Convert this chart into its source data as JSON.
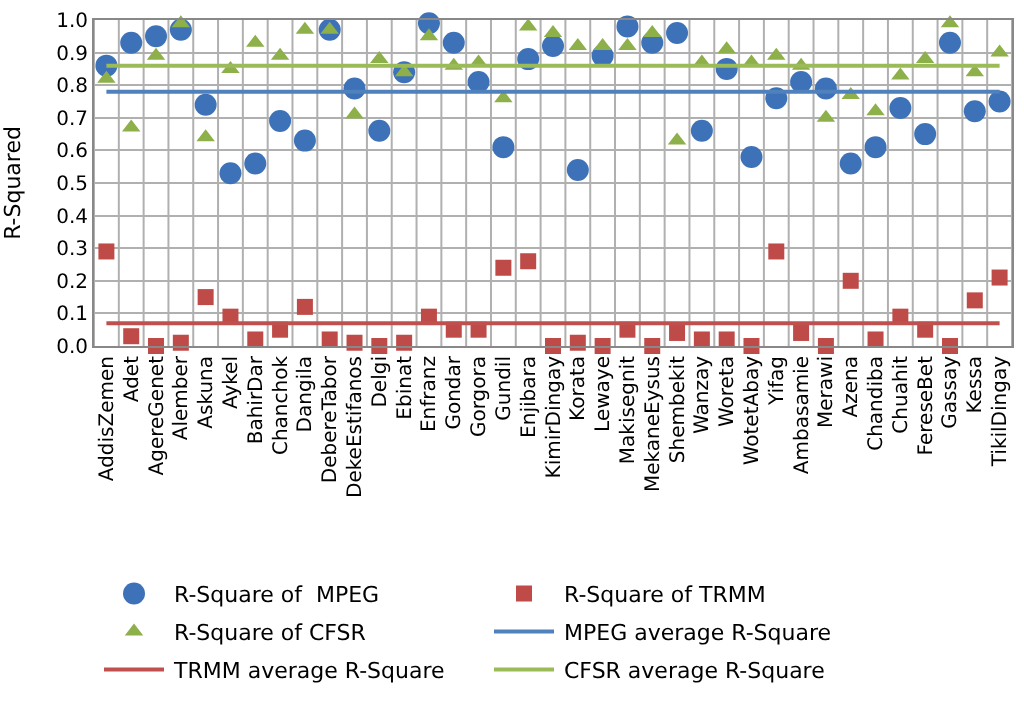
{
  "chart_data": {
    "type": "scatter",
    "ylabel": "R-Squared",
    "categories": [
      "AddisZemen",
      "Adet",
      "AgereGenet",
      "Alember",
      "Askuna",
      "Aykel",
      "BahirDar",
      "Chanchok",
      "Dangila",
      "DebereTabor",
      "DekeEstifanos",
      "Delgi",
      "Ebinat",
      "Enfranz",
      "Gondar",
      "Gorgora",
      "Gundil",
      "Enjibara",
      "KimirDingay",
      "Korata",
      "Lewaye",
      "Makisegnit",
      "MekaneEysus",
      "Shembekit",
      "Wanzay",
      "Woreta",
      "WotetAbay",
      "Yifag",
      "Ambasamie",
      "Merawi",
      "Azena",
      "Chandiba",
      "Chuahit",
      "FereseBet",
      "Gassay",
      "Kessa",
      "TikilDingay"
    ],
    "series": [
      {
        "name": "R-Square of  MPEG",
        "color": "#3d72b8",
        "marker": "circle",
        "values": [
          0.86,
          0.93,
          0.95,
          0.97,
          0.74,
          0.53,
          0.56,
          0.69,
          0.63,
          0.97,
          0.79,
          0.66,
          0.84,
          0.99,
          0.93,
          0.81,
          0.61,
          0.88,
          0.92,
          0.54,
          0.89,
          0.98,
          0.93,
          0.96,
          0.66,
          0.85,
          0.58,
          0.76,
          0.81,
          0.79,
          0.56,
          0.61,
          0.73,
          0.65,
          0.93,
          0.72,
          0.75
        ]
      },
      {
        "name": "R-Square of TRMM",
        "color": "#be4b48",
        "marker": "square",
        "values": [
          0.29,
          0.03,
          0.0,
          0.01,
          0.15,
          0.09,
          0.02,
          0.05,
          0.12,
          0.02,
          0.01,
          0.0,
          0.01,
          0.09,
          0.05,
          0.05,
          0.24,
          0.26,
          0.0,
          0.01,
          0.0,
          0.05,
          0.0,
          0.04,
          0.02,
          0.02,
          0.0,
          0.29,
          0.04,
          0.0,
          0.2,
          0.02,
          0.09,
          0.05,
          0.0,
          0.14,
          0.21
        ]
      },
      {
        "name": "R-Square of CFSR",
        "color": "#8eb04a",
        "marker": "triangle",
        "values": [
          0.82,
          0.67,
          0.89,
          0.99,
          0.64,
          0.85,
          0.93,
          0.89,
          0.97,
          0.97,
          0.71,
          0.88,
          0.84,
          0.95,
          0.86,
          0.87,
          0.76,
          0.98,
          0.96,
          0.92,
          0.92,
          0.92,
          0.96,
          0.63,
          0.87,
          0.91,
          0.87,
          0.89,
          0.86,
          0.7,
          0.77,
          0.72,
          0.83,
          0.88,
          0.99,
          0.84,
          0.9
        ]
      }
    ],
    "ref_lines": [
      {
        "axis": "y",
        "value": 0.78,
        "label": "MPEG average R-Square",
        "color": "#4f81bd"
      },
      {
        "axis": "y",
        "value": 0.07,
        "label": "TRMM average R-Square",
        "color": "#c0504d"
      },
      {
        "axis": "y",
        "value": 0.86,
        "label": "CFSR average R-Square",
        "color": "#9bbb59"
      }
    ],
    "ylim": [
      0,
      1
    ],
    "yticks": [
      {
        "value": 0,
        "label": "0.0"
      },
      {
        "value": 0.1,
        "label": "0.1"
      },
      {
        "value": 0.2,
        "label": "0.2"
      },
      {
        "value": 0.3,
        "label": "0.3"
      },
      {
        "value": 0.4,
        "label": "0.4"
      },
      {
        "value": 0.5,
        "label": "0.5"
      },
      {
        "value": 0.6,
        "label": "0.6"
      },
      {
        "value": 0.7,
        "label": "0.7"
      },
      {
        "value": 0.8,
        "label": "0.8"
      },
      {
        "value": 0.9,
        "label": "0.9"
      },
      {
        "value": 1,
        "label": "1.0"
      }
    ],
    "grid": true,
    "legend": "bottom"
  }
}
